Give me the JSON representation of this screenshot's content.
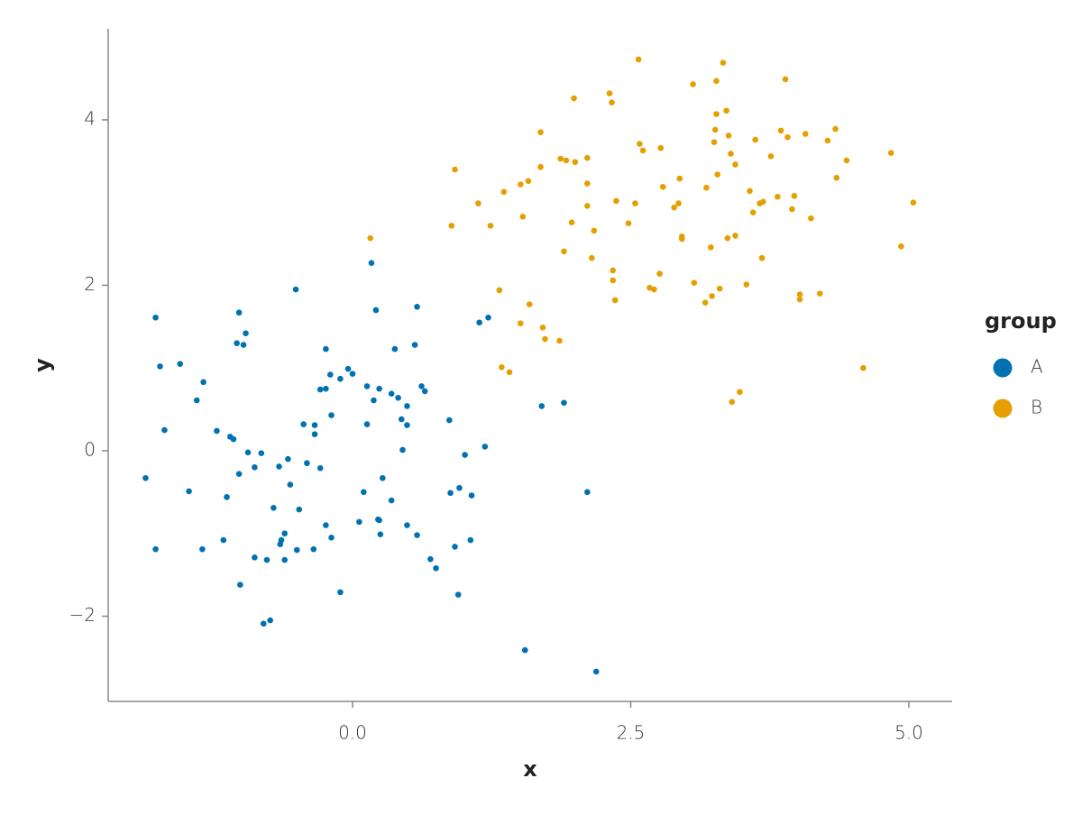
{
  "chart_data": {
    "type": "scatter",
    "x_label": "x",
    "y_label": "y",
    "legend_title": "group",
    "legend": "right",
    "grid": false,
    "xlim": [
      -2.196,
      5.389
    ],
    "ylim": [
      -3.03,
      5.1
    ],
    "xticks": [
      {
        "value": 0,
        "label": "0.0"
      },
      2.5,
      {
        "value": 5,
        "label": "5.0"
      }
    ],
    "yticks": [
      {
        "value": -2,
        "label": "−2"
      },
      0,
      2,
      4
    ],
    "series": [
      {
        "name": "A",
        "color": "#0072B2",
        "x": [
          -1.86,
          -1.77,
          -1.77,
          -1.73,
          -1.69,
          -1.55,
          -1.47,
          -1.4,
          -1.35,
          -1.34,
          -1.22,
          -1.16,
          -1.13,
          -1.1,
          -1.07,
          -1.02,
          -1.04,
          -1.02,
          -0.98,
          -0.96,
          -1.01,
          -0.94,
          -0.88,
          -0.88,
          -0.82,
          -0.8,
          -0.77,
          -0.74,
          -0.71,
          -0.66,
          -0.65,
          -0.64,
          -0.61,
          -0.61,
          -0.58,
          -0.56,
          -0.51,
          -0.5,
          -0.48,
          -0.44,
          -0.41,
          -0.35,
          -0.34,
          -0.34,
          -0.29,
          -0.29,
          -0.24,
          -0.24,
          -0.24,
          -0.2,
          -0.19,
          -0.19,
          -0.11,
          -0.11,
          -0.04,
          0.0,
          0.06,
          0.1,
          0.13,
          0.13,
          0.17,
          0.19,
          0.21,
          0.23,
          0.24,
          0.24,
          0.25,
          0.27,
          0.35,
          0.35,
          0.38,
          0.41,
          0.44,
          0.45,
          0.49,
          0.49,
          0.49,
          0.56,
          0.58,
          0.58,
          0.62,
          0.65,
          0.7,
          0.75,
          0.87,
          0.88,
          0.92,
          0.95,
          0.96,
          1.01,
          1.06,
          1.07,
          1.14,
          1.19,
          1.22,
          1.55,
          1.7,
          1.9,
          2.11,
          2.19
        ],
        "values": [
          -0.33,
          1.61,
          -1.19,
          1.02,
          0.25,
          1.05,
          -0.49,
          0.61,
          -1.19,
          0.83,
          0.24,
          -1.08,
          -0.56,
          0.17,
          0.14,
          1.67,
          1.3,
          -0.28,
          1.28,
          1.42,
          -1.62,
          -0.02,
          -0.2,
          -1.29,
          -0.03,
          -2.09,
          -1.32,
          -2.05,
          -0.69,
          -0.19,
          -1.13,
          -1.08,
          -1.32,
          -1.0,
          -0.1,
          -0.41,
          1.95,
          -1.2,
          -0.71,
          0.32,
          -0.15,
          -1.19,
          0.31,
          0.2,
          0.74,
          -0.21,
          0.75,
          -0.9,
          1.23,
          0.92,
          -1.05,
          0.43,
          0.87,
          -1.71,
          0.99,
          0.93,
          -0.86,
          -0.5,
          0.78,
          0.32,
          2.27,
          0.61,
          1.7,
          -0.83,
          -0.84,
          0.75,
          -1.01,
          -0.33,
          -0.6,
          0.69,
          1.23,
          0.64,
          0.38,
          0.01,
          -0.9,
          0.31,
          0.54,
          1.28,
          1.74,
          -1.02,
          0.78,
          0.72,
          -1.31,
          -1.42,
          0.37,
          -0.51,
          -1.16,
          -1.74,
          -0.45,
          -0.05,
          -1.08,
          -0.54,
          1.55,
          0.05,
          1.61,
          -2.41,
          0.54,
          0.58,
          -0.5,
          -2.67
        ]
      },
      {
        "name": "B",
        "color": "#E69F00",
        "x": [
          0.16,
          0.89,
          0.92,
          1.13,
          1.24,
          1.32,
          1.34,
          1.36,
          1.41,
          1.51,
          1.51,
          1.53,
          1.58,
          1.59,
          1.71,
          1.73,
          1.69,
          1.69,
          1.86,
          1.87,
          1.9,
          1.92,
          1.97,
          1.99,
          2.0,
          2.11,
          2.11,
          2.11,
          2.15,
          2.17,
          2.31,
          2.33,
          2.34,
          2.34,
          2.36,
          2.37,
          2.48,
          2.54,
          2.57,
          2.58,
          2.61,
          2.67,
          2.71,
          2.76,
          2.77,
          2.79,
          2.89,
          2.93,
          2.94,
          2.96,
          2.96,
          3.06,
          3.07,
          3.17,
          3.18,
          3.22,
          3.23,
          3.25,
          3.26,
          3.27,
          3.27,
          3.28,
          3.3,
          3.33,
          3.36,
          3.37,
          3.38,
          3.4,
          3.41,
          3.44,
          3.44,
          3.48,
          3.54,
          3.57,
          3.6,
          3.62,
          3.66,
          3.68,
          3.69,
          3.76,
          3.82,
          3.85,
          3.89,
          3.91,
          3.95,
          3.97,
          4.02,
          4.02,
          4.07,
          4.12,
          4.2,
          4.27,
          4.34,
          4.35,
          4.44,
          4.59,
          4.84,
          4.93,
          5.04
        ],
        "values": [
          2.57,
          2.72,
          3.4,
          2.99,
          2.72,
          1.94,
          1.01,
          3.13,
          0.95,
          1.54,
          3.22,
          2.83,
          3.26,
          1.77,
          1.49,
          1.35,
          3.43,
          3.85,
          1.33,
          3.53,
          2.41,
          3.51,
          2.76,
          4.26,
          3.49,
          2.96,
          3.54,
          3.23,
          2.33,
          2.66,
          4.32,
          4.21,
          2.18,
          2.06,
          1.82,
          3.02,
          2.75,
          2.99,
          4.73,
          3.71,
          3.63,
          1.97,
          1.95,
          2.14,
          3.66,
          3.19,
          2.94,
          2.99,
          3.29,
          2.59,
          2.56,
          4.43,
          2.03,
          1.79,
          3.18,
          2.46,
          1.87,
          3.73,
          3.88,
          4.47,
          4.07,
          3.34,
          1.96,
          4.69,
          4.11,
          2.57,
          3.81,
          3.59,
          0.59,
          3.46,
          2.6,
          0.71,
          2.01,
          3.14,
          2.88,
          3.76,
          2.99,
          2.33,
          3.01,
          3.56,
          3.07,
          3.87,
          4.49,
          3.79,
          2.92,
          3.08,
          1.89,
          1.83,
          3.83,
          2.81,
          1.9,
          3.75,
          3.89,
          3.3,
          3.51,
          1.0,
          3.6,
          2.47,
          3.0
        ]
      }
    ]
  }
}
